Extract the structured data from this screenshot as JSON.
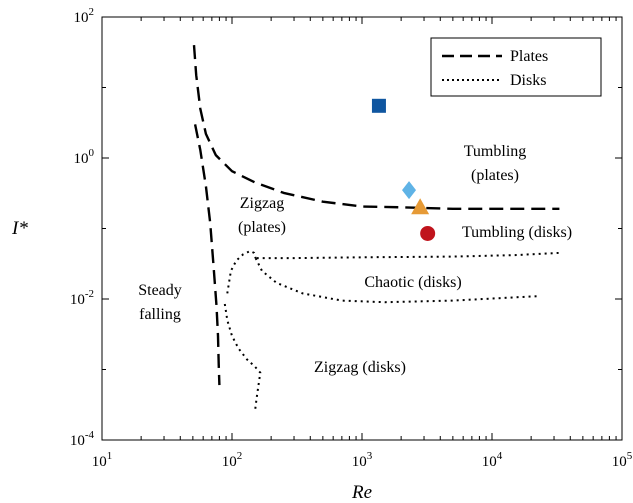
{
  "chart_data": {
    "type": "scatter",
    "xlabel": "Re",
    "ylabel": "I*",
    "xscale": "log",
    "yscale": "log",
    "xlim": [
      10,
      100000
    ],
    "ylim": [
      0.0001,
      100
    ],
    "grid": false,
    "legend_position": "top-right",
    "x_ticks": [
      {
        "base": "10",
        "exp": "1"
      },
      {
        "base": "10",
        "exp": "2"
      },
      {
        "base": "10",
        "exp": "3"
      },
      {
        "base": "10",
        "exp": "4"
      },
      {
        "base": "10",
        "exp": "5"
      }
    ],
    "y_ticks": [
      {
        "base": "10",
        "exp": "-4"
      },
      {
        "base": "10",
        "exp": "-2"
      },
      {
        "base": "10",
        "exp": "0"
      },
      {
        "base": "10",
        "exp": "2"
      }
    ],
    "legend": [
      {
        "label": "Plates",
        "style": "dashed"
      },
      {
        "label": "Disks",
        "style": "dotted"
      }
    ],
    "boundaries": [
      {
        "group": "plates",
        "style": "dashed",
        "points": [
          [
            51,
            40
          ],
          [
            53,
            15
          ],
          [
            57,
            5
          ],
          [
            63,
            2.2
          ],
          [
            75,
            1.1
          ],
          [
            100,
            0.65
          ],
          [
            150,
            0.45
          ],
          [
            250,
            0.32
          ],
          [
            500,
            0.24
          ],
          [
            1000,
            0.205
          ],
          [
            2000,
            0.2
          ],
          [
            5000,
            0.19
          ],
          [
            10000,
            0.19
          ],
          [
            20000,
            0.19
          ],
          [
            33000,
            0.19
          ]
        ]
      },
      {
        "group": "plates",
        "style": "dashed",
        "points": [
          [
            52,
            3
          ],
          [
            57,
            1.3
          ],
          [
            63,
            0.4
          ],
          [
            68,
            0.12
          ],
          [
            72,
            0.03
          ],
          [
            76,
            0.008
          ],
          [
            78,
            0.003
          ],
          [
            79,
            0.0012
          ],
          [
            80,
            0.0006
          ]
        ]
      },
      {
        "group": "disks",
        "style": "dotted",
        "points": [
          [
            92,
            0.012
          ],
          [
            98,
            0.025
          ],
          [
            108,
            0.035
          ],
          [
            122,
            0.043
          ],
          [
            138,
            0.048
          ],
          [
            148,
            0.045
          ],
          [
            152,
            0.038
          ]
        ]
      },
      {
        "group": "disks",
        "style": "dotted",
        "points": [
          [
            155,
            0.038
          ],
          [
            300,
            0.038
          ],
          [
            1000,
            0.039
          ],
          [
            5000,
            0.04
          ],
          [
            15000,
            0.042
          ],
          [
            33000,
            0.045
          ]
        ]
      },
      {
        "group": "disks",
        "style": "dotted",
        "points": [
          [
            152,
            0.038
          ],
          [
            170,
            0.025
          ],
          [
            220,
            0.017
          ],
          [
            350,
            0.012
          ],
          [
            700,
            0.0095
          ],
          [
            1500,
            0.009
          ],
          [
            5000,
            0.0095
          ],
          [
            23000,
            0.011
          ]
        ]
      },
      {
        "group": "disks",
        "style": "dotted",
        "points": [
          [
            88,
            0.0085
          ],
          [
            92,
            0.005
          ],
          [
            100,
            0.003
          ],
          [
            112,
            0.002
          ],
          [
            130,
            0.0014
          ],
          [
            150,
            0.0011
          ],
          [
            165,
            0.0009
          ],
          [
            160,
            0.0006
          ],
          [
            155,
            0.0004
          ],
          [
            150,
            0.00025
          ]
        ]
      }
    ],
    "markers": [
      {
        "shape": "square",
        "color": "#0f56a0",
        "x": 1350,
        "y": 5.5
      },
      {
        "shape": "diamond",
        "color": "#5fb3e6",
        "x": 2300,
        "y": 0.35
      },
      {
        "shape": "triangle",
        "color": "#e69a36",
        "x": 2800,
        "y": 0.2
      },
      {
        "shape": "circle",
        "color": "#c0141c",
        "x": 3200,
        "y": 0.085
      }
    ],
    "region_labels": [
      {
        "lines": [
          "Tumbling",
          "(plates)"
        ]
      },
      {
        "lines": [
          "Zigzag",
          "(plates)"
        ]
      },
      {
        "lines": [
          "Tumbling (disks)"
        ]
      },
      {
        "lines": [
          "Chaotic (disks)"
        ]
      },
      {
        "lines": [
          "Steady",
          "falling"
        ]
      },
      {
        "lines": [
          "Zigzag (disks)"
        ]
      }
    ]
  }
}
